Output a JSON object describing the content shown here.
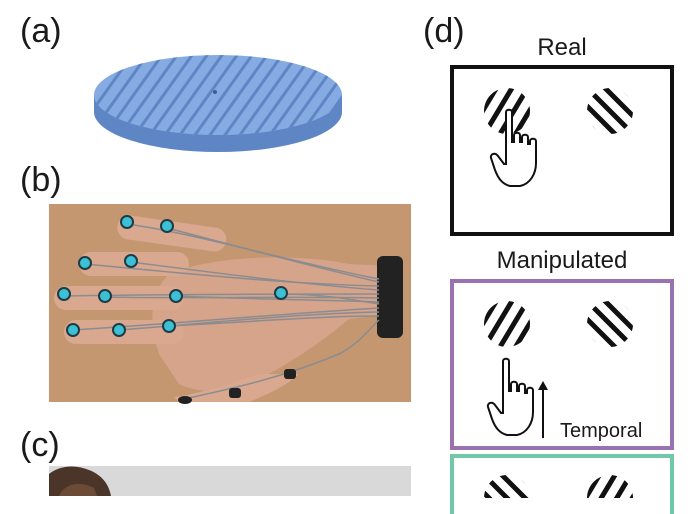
{
  "panels": {
    "a": {
      "label": "(a)"
    },
    "b": {
      "label": "(b)"
    },
    "c": {
      "label": "(c)"
    },
    "d": {
      "label": "(d)",
      "conditions": [
        {
          "title": "Real",
          "frame_color": "#111111"
        },
        {
          "title": "Manipulated",
          "frame_color": "#9b72b0",
          "annotation": "Temporal"
        },
        {
          "title": "",
          "frame_color": "#6fc9a8"
        }
      ]
    }
  },
  "colors": {
    "surface": "#7ea3dd",
    "surface_dark": "#5f86c4",
    "wood": "#c89b74",
    "skin": "#d6a38b",
    "wire": "#8a8c8f",
    "sensor": "#3cc0d6",
    "strap": "#222222"
  },
  "icons": [
    "hand-pointer-icon",
    "grating-disk-icon",
    "arrow-up-icon"
  ]
}
